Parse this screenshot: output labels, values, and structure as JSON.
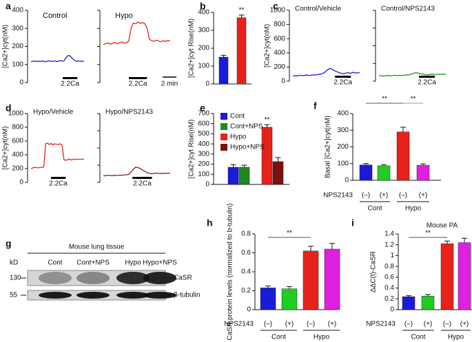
{
  "chart_data": [
    {
      "type": "line",
      "panel": "a",
      "ylabel": "[Ca2+]cyt(nM)",
      "ylim": [
        0,
        400
      ],
      "yticks": [
        0,
        100,
        200,
        300,
        400
      ],
      "annotation": "2.2Ca",
      "series": [
        {
          "name": "Control",
          "color": "#1a1adb",
          "values": [
            115,
            118,
            120,
            116,
            119,
            117,
            120,
            118,
            115,
            119,
            121,
            117,
            118,
            120,
            116,
            118,
            122,
            119,
            120,
            135,
            148,
            150,
            140,
            130,
            122,
            118,
            120,
            117,
            119,
            118
          ]
        }
      ]
    },
    {
      "type": "line",
      "ylim": [
        0,
        400
      ],
      "annotation": "2.2Ca",
      "scale_bar": "2 min",
      "series": [
        {
          "name": "Hypo",
          "color": "#e8211a",
          "values": [
            210,
            215,
            220,
            212,
            218,
            222,
            215,
            220,
            225,
            218,
            222,
            228,
            300,
            330,
            325,
            335,
            328,
            332,
            326,
            300,
            240,
            232,
            228,
            235,
            230,
            226,
            232,
            228,
            234,
            230
          ]
        }
      ]
    },
    {
      "type": "bar",
      "panel": "b",
      "ylabel": "[Ca2+]cyt Rise(nM)",
      "ylim": [
        0,
        400
      ],
      "yticks": [
        0,
        100,
        200,
        300,
        400
      ],
      "annotation": "**",
      "values": [
        150,
        370
      ],
      "errors": [
        10,
        15
      ],
      "colors": [
        "#1a1adb",
        "#e8211a"
      ]
    },
    {
      "type": "line",
      "panel": "c",
      "ylabel": "[Ca2+]cyt(nM)",
      "ylim": [
        0,
        1000
      ],
      "yticks": [
        0,
        200,
        400,
        600,
        800,
        1000
      ],
      "annotation": "2.2Ca",
      "series": [
        {
          "name": "Control/Vehicle",
          "color": "#1a1adb",
          "values": [
            70,
            80,
            75,
            85,
            78,
            82,
            88,
            80,
            85,
            90,
            88,
            95,
            100,
            110,
            130,
            160,
            180,
            170,
            150,
            135,
            120,
            110,
            105,
            115,
            120,
            110,
            125,
            115,
            120,
            118
          ]
        }
      ]
    },
    {
      "type": "line",
      "ylim": [
        0,
        1000
      ],
      "annotation": "2.2Ca",
      "series": [
        {
          "name": "Control/NPS2143",
          "color": "#1e8a1e",
          "values": [
            75,
            80,
            70,
            78,
            82,
            75,
            80,
            85,
            78,
            82,
            80,
            85,
            88,
            90,
            100,
            110,
            120,
            115,
            105,
            100,
            95,
            90,
            95,
            100,
            92,
            95,
            98,
            95,
            100,
            96
          ]
        }
      ]
    },
    {
      "type": "line",
      "panel": "d",
      "ylabel": "[Ca2+]cyt(nM)",
      "ylim": [
        0,
        1000
      ],
      "yticks": [
        0,
        200,
        400,
        600,
        800,
        1000
      ],
      "annotation": "2.2Ca",
      "series": [
        {
          "name": "Hypo/Vehicle",
          "color": "#e8211a",
          "values": [
            200,
            210,
            220,
            215,
            210,
            220,
            215,
            225,
            560,
            570,
            550,
            565,
            545,
            560,
            555,
            550,
            560,
            540,
            330,
            320,
            330,
            340,
            325,
            335,
            330,
            340,
            335,
            330,
            340,
            335
          ]
        }
      ]
    },
    {
      "type": "line",
      "ylim": [
        0,
        1000
      ],
      "annotation": "2.2Ca",
      "series": [
        {
          "name": "Hypo/NPS2143",
          "color": "#8b1a1a",
          "values": [
            100,
            95,
            105,
            100,
            98,
            102,
            100,
            105,
            100,
            110,
            110,
            115,
            150,
            190,
            220,
            215,
            200,
            180,
            160,
            140,
            130,
            125,
            130,
            135,
            130,
            128,
            132,
            130,
            135,
            130
          ]
        }
      ]
    },
    {
      "type": "bar",
      "panel": "e",
      "ylabel": "[Ca2+]cyt Rise(nM)",
      "ylim": [
        0,
        700
      ],
      "yticks": [
        0,
        100,
        200,
        300,
        400,
        500,
        600,
        700
      ],
      "annotation": "**",
      "categories": [
        "Cont",
        "Cont+NPS",
        "Hypo",
        "Hypo+NPS"
      ],
      "values": [
        170,
        170,
        565,
        225
      ],
      "errors": [
        25,
        20,
        25,
        40
      ],
      "colors": [
        "#1a1adb",
        "#1e8a1e",
        "#e8211a",
        "#7a1010"
      ]
    },
    {
      "type": "bar",
      "panel": "f",
      "ylabel": "Basal [Ca2+]cyt(nM)",
      "ylim": [
        0,
        400
      ],
      "yticks": [
        0,
        100,
        200,
        300,
        400
      ],
      "annotations": [
        "**",
        "**"
      ],
      "row_label": "NPS2143",
      "categories": [
        "(–)",
        "(+)",
        "(–)",
        "(+)"
      ],
      "groups": [
        "Cont",
        "Hypo"
      ],
      "values": [
        92,
        87,
        290,
        90
      ],
      "errors": [
        8,
        7,
        28,
        8
      ],
      "colors": [
        "#1a1adb",
        "#22cc22",
        "#e8211a",
        "#e020e0"
      ]
    },
    {
      "type": "blot",
      "panel": "g",
      "title": "Mouse lung tissue",
      "unit": "kD",
      "lanes": [
        "Cont",
        "Cont+NPS",
        "Hypo",
        "Hypo+NPS"
      ],
      "lane_colors": [
        "#1a1adb",
        "#1a1adb",
        "#e8211a",
        "#e8211a"
      ],
      "markers": [
        "130",
        "55"
      ],
      "proteins": [
        "CaSR",
        "β-tubulin"
      ]
    },
    {
      "type": "bar",
      "panel": "h",
      "ylabel": "CaSR protein levels (normalized to b-tubulin)",
      "ylim": [
        0,
        0.8
      ],
      "yticks": [
        0,
        0.2,
        0.4,
        0.6,
        0.8
      ],
      "annotation": "**",
      "row_label": "NPS2143",
      "categories": [
        "(–)",
        "(+)",
        "(–)",
        "(+)"
      ],
      "groups": [
        "Cont",
        "Hypo"
      ],
      "values": [
        0.23,
        0.22,
        0.62,
        0.64
      ],
      "errors": [
        0.02,
        0.025,
        0.05,
        0.06
      ],
      "colors": [
        "#1a1adb",
        "#22cc22",
        "#e8211a",
        "#e020e0"
      ]
    },
    {
      "type": "bar",
      "panel": "i",
      "title": "Mouse PA",
      "ylabel": "ΔΔC(t)-CaSR",
      "ylim": [
        0,
        1.4
      ],
      "yticks": [
        0,
        0.2,
        0.4,
        0.6,
        0.8,
        1,
        1.2,
        1.4
      ],
      "annotation": "**",
      "row_label": "NPS2143",
      "categories": [
        "(–)",
        "(+)",
        "(–)",
        "(+)"
      ],
      "groups": [
        "Cont",
        "Hypo"
      ],
      "values": [
        0.24,
        0.25,
        1.22,
        1.24
      ],
      "errors": [
        0.02,
        0.03,
        0.05,
        0.08
      ],
      "colors": [
        "#1a1adb",
        "#22cc22",
        "#e8211a",
        "#e020e0"
      ]
    }
  ]
}
